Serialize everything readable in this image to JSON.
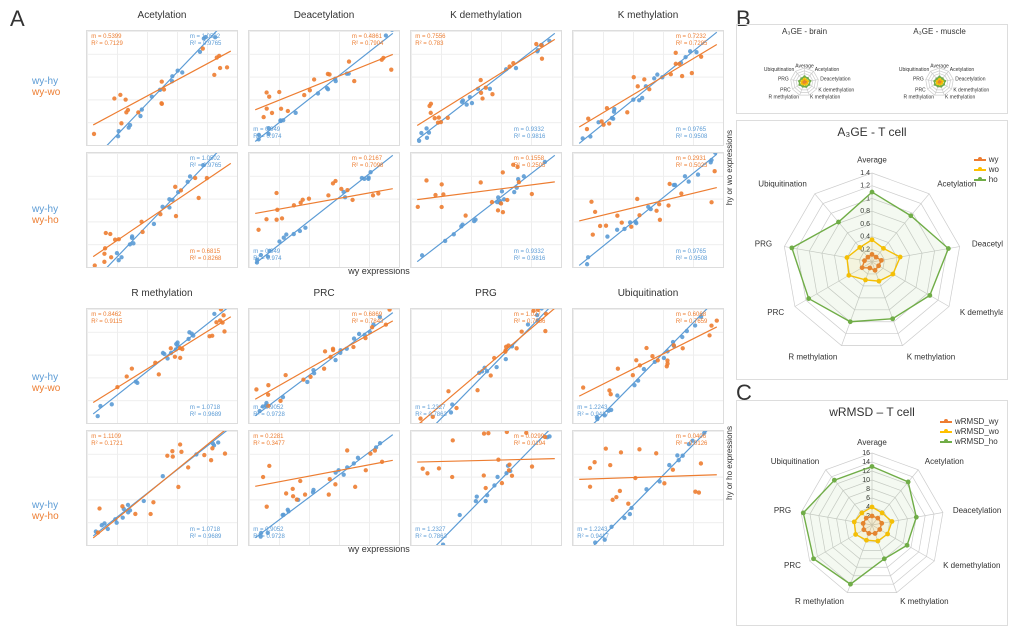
{
  "palette": {
    "blue": "#5b9bd5",
    "orange": "#ed7d31",
    "green": "#70ad47",
    "grid": "#e0e0e0",
    "text": "#333333"
  },
  "panelA": {
    "label": "A",
    "row_label_blue": "wy-hy",
    "row_label_orange_wo": "wy-wo",
    "row_label_orange_ho": "wy-ho",
    "axis_x": "wy expressions",
    "axis_y_top": "hy or wo expressions",
    "axis_y_bottom": "hy or ho expressions",
    "blocks": [
      {
        "titles": [
          "Acetylation",
          "Deacetylation",
          "K demethylation",
          "K methylation"
        ],
        "rows": [
          {
            "orange_key": "wy-wo",
            "cells": [
              {
                "m_o": 0.5399,
                "r2_o": 0.7129,
                "m_b": 1.0502,
                "r2_b": 0.9765,
                "xlim": [
                  -3,
                  3
                ],
                "ylim": [
                  -2.5,
                  2.5
                ],
                "stat_o_pos": "tl",
                "stat_b_pos": "tr"
              },
              {
                "m_o": 0.4861,
                "r2_o": 0.7904,
                "m_b": 0.949,
                "r2_b": 0.974,
                "xlim": [
                  -6,
                  4
                ],
                "ylim": [
                  -6,
                  4
                ],
                "stat_o_pos": "tr",
                "stat_b_pos": "bl"
              },
              {
                "m_o": 0.7556,
                "r2_o": 0.783,
                "m_b": 0.9332,
                "r2_b": 0.9816,
                "xlim": [
                  -7,
                  3
                ],
                "ylim": [
                  -7,
                  3
                ],
                "stat_o_pos": "tl",
                "stat_b_pos": "br"
              },
              {
                "m_o": 0.7232,
                "r2_o": 0.7285,
                "m_b": 0.9765,
                "r2_b": 0.9508,
                "xlim": [
                  -4,
                  3
                ],
                "ylim": [
                  -4,
                  3
                ],
                "stat_o_pos": "tr",
                "stat_b_pos": "br"
              }
            ]
          },
          {
            "orange_key": "wy-ho",
            "cells": [
              {
                "m_o": 0.6815,
                "r2_o": 0.8268,
                "m_b": 1.0502,
                "r2_b": 0.9765,
                "xlim": [
                  -3,
                  3
                ],
                "ylim": [
                  -2.5,
                  2.5
                ],
                "stat_o_pos": "br",
                "stat_b_pos": "tr"
              },
              {
                "m_o": 0.2167,
                "r2_o": 0.7098,
                "m_b": 0.949,
                "r2_b": 0.974,
                "xlim": [
                  -6,
                  4
                ],
                "ylim": [
                  -6,
                  4
                ],
                "stat_o_pos": "tr",
                "stat_b_pos": "bl"
              },
              {
                "m_o": 0.1558,
                "r2_o": 0.2505,
                "m_b": 0.9332,
                "r2_b": 0.9816,
                "xlim": [
                  -7,
                  3
                ],
                "ylim": [
                  -7,
                  3
                ],
                "stat_o_pos": "tr",
                "stat_b_pos": "br"
              },
              {
                "m_o": 0.2931,
                "r2_o": 0.5023,
                "m_b": 0.9765,
                "r2_b": 0.9508,
                "xlim": [
                  -4,
                  3
                ],
                "ylim": [
                  -4,
                  3
                ],
                "stat_o_pos": "tr",
                "stat_b_pos": "br"
              }
            ]
          }
        ]
      },
      {
        "titles": [
          "R methylation",
          "PRC",
          "PRG",
          "Ubiquitination"
        ],
        "rows": [
          {
            "orange_key": "wy-wo",
            "cells": [
              {
                "m_o": 0.8462,
                "r2_o": 0.9115,
                "m_b": 1.0718,
                "r2_b": 0.9689,
                "xlim": [
                  -4,
                  4
                ],
                "ylim": [
                  -5,
                  4
                ],
                "stat_o_pos": "tl",
                "stat_b_pos": "br"
              },
              {
                "m_o": 0.6869,
                "r2_o": 0.7843,
                "m_b": 0.9052,
                "r2_b": 0.9728,
                "xlim": [
                  -8,
                  4
                ],
                "ylim": [
                  -8,
                  4
                ],
                "stat_o_pos": "tr",
                "stat_b_pos": "bl"
              },
              {
                "m_o": 1.027,
                "r2_o": 0.7656,
                "m_b": 1.2327,
                "r2_b": 0.7863,
                "xlim": [
                  -12,
                  4
                ],
                "ylim": [
                  -12,
                  4
                ],
                "stat_o_pos": "tr",
                "stat_b_pos": "bl"
              },
              {
                "m_o": 0.6068,
                "r2_o": 0.7659,
                "m_b": 1.2243,
                "r2_b": 0.9417,
                "xlim": [
                  -3,
                  2
                ],
                "ylim": [
                  -3,
                  2
                ],
                "stat_o_pos": "tr",
                "stat_b_pos": "bl"
              }
            ]
          },
          {
            "orange_key": "wy-ho",
            "cells": [
              {
                "m_o": 1.1109,
                "r2_o": 0.1721,
                "m_b": 1.0718,
                "r2_b": 0.9689,
                "xlim": [
                  -4,
                  4
                ],
                "ylim": [
                  -5,
                  4
                ],
                "stat_o_pos": "tl",
                "stat_b_pos": "br"
              },
              {
                "m_o": 0.2281,
                "r2_o": 0.3477,
                "m_b": 0.9052,
                "r2_b": 0.9728,
                "xlim": [
                  -8,
                  4
                ],
                "ylim": [
                  -8,
                  4
                ],
                "stat_o_pos": "tl",
                "stat_b_pos": "bl"
              },
              {
                "m_o": 0.0299,
                "r2_o": 0.0194,
                "m_b": 1.2327,
                "r2_b": 0.7863,
                "xlim": [
                  -12,
                  4
                ],
                "ylim": [
                  -12,
                  4
                ],
                "stat_o_pos": "tr",
                "stat_b_pos": "bl"
              },
              {
                "m_o": 0.0406,
                "r2_o": 0.0126,
                "m_b": 1.2243,
                "r2_b": 0.9417,
                "xlim": [
                  -3,
                  2
                ],
                "ylim": [
                  -3,
                  2
                ],
                "stat_o_pos": "tr",
                "stat_b_pos": "bl"
              }
            ]
          }
        ]
      }
    ]
  },
  "panelB": {
    "label": "B",
    "small": [
      {
        "title": "A₃GE - brain"
      },
      {
        "title": "A₃GE - muscle"
      }
    ],
    "large_title": "A₃GE - T cell",
    "axes": [
      "Average",
      "Acetylation",
      "Deacetylation",
      "K demethylation",
      "K methylation",
      "R methylation",
      "PRC",
      "PRG",
      "Ubiquitination"
    ],
    "ring_ticks": [
      0.2,
      0.4,
      0.6,
      0.8,
      1,
      1.2,
      1.4
    ],
    "legend": [
      {
        "label": "wy",
        "color": "#ed7d31"
      },
      {
        "label": "wo",
        "color": "#ffc000"
      },
      {
        "label": "ho",
        "color": "#70ad47"
      }
    ],
    "series": {
      "wy": [
        0.12,
        0.1,
        0.15,
        0.12,
        0.14,
        0.1,
        0.18,
        0.12,
        0.1
      ],
      "wo": [
        0.35,
        0.28,
        0.45,
        0.38,
        0.32,
        0.3,
        0.42,
        0.4,
        0.3
      ],
      "ho": [
        1.1,
        0.95,
        1.22,
        1.05,
        0.95,
        1.0,
        1.15,
        1.28,
        0.82
      ]
    },
    "small_series": {
      "brain": {
        "wy": [
          0.1,
          0.1,
          0.12,
          0.1,
          0.1,
          0.1,
          0.1,
          0.1,
          0.1
        ],
        "wo": [
          0.25,
          0.2,
          0.26,
          0.22,
          0.2,
          0.22,
          0.24,
          0.22,
          0.2
        ],
        "ho": [
          0.4,
          0.35,
          0.42,
          0.38,
          0.36,
          0.34,
          0.4,
          0.38,
          0.32
        ]
      },
      "muscle": {
        "wy": [
          0.1,
          0.1,
          0.12,
          0.1,
          0.1,
          0.1,
          0.1,
          0.1,
          0.1
        ],
        "wo": [
          0.22,
          0.2,
          0.24,
          0.2,
          0.2,
          0.2,
          0.22,
          0.2,
          0.2
        ],
        "ho": [
          0.38,
          0.32,
          0.4,
          0.36,
          0.34,
          0.32,
          0.38,
          0.36,
          0.3
        ]
      }
    }
  },
  "panelC": {
    "label": "C",
    "title": "wRMSD – T cell",
    "axes": [
      "Average",
      "Acetylation",
      "Deacetylation",
      "K demethylation",
      "K methylation",
      "R methylation",
      "PRC",
      "PRG",
      "Ubiquitination"
    ],
    "ring_ticks": [
      2,
      4,
      6,
      8,
      10,
      12,
      14,
      16
    ],
    "legend": [
      {
        "label": "wRMSD_wy",
        "color": "#ed7d31"
      },
      {
        "label": "wRMSD_wo",
        "color": "#ffc000"
      },
      {
        "label": "wRMSD_ho",
        "color": "#70ad47"
      }
    ],
    "series": {
      "wy": [
        2,
        2,
        2.2,
        2,
        2,
        2,
        2.1,
        2,
        2
      ],
      "wo": [
        4,
        3.5,
        4.5,
        4,
        3.8,
        3.6,
        4.2,
        4,
        3.5
      ],
      "ho": [
        13,
        12.5,
        10,
        9,
        8,
        14,
        15,
        15.5,
        13
      ]
    }
  }
}
